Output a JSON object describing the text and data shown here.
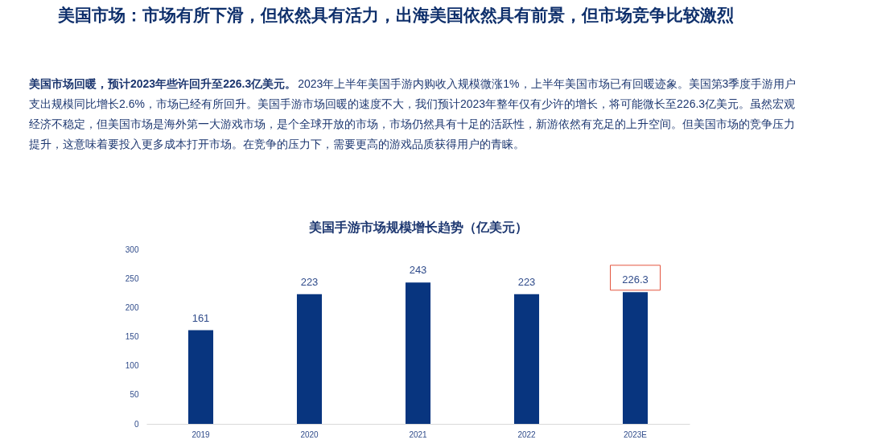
{
  "chart_data": {
    "type": "bar",
    "title": "美国手游市场规模增长趋势（亿美元）",
    "annotations": [
      "美国市场：市场有所下滑，但依然具有活力，出海美国依然具有前景，但市场竞争比较激烈",
      "美国市场回暖，预计2023年些许回升至226.3亿美元。",
      "2023年上半年美国手游内购收入规模微涨1%，上半年美国市场已有回暖迹象。美国第3季度手游用户支出规模同比增长2.6%，市场已经有所回升。美国手游市场回暖的速度不大，我们预计2023年整年仅有少许的增长，将可能微长至226.3亿美元。虽然宏观经济不稳定，但美国市场是海外第一大游戏市场，是个全球开放的市场，市场仍然具有十足的活跃性，新游依然有充足的上升空间。但美国市场的竞争压力提升，这意味着要投入更多成本打开市场。在竞争的压力下，需要更高的游戏品质获得用户的青睐。"
    ],
    "categories": [
      "2019",
      "2020",
      "2021",
      "2022",
      "2023E"
    ],
    "values": [
      161,
      223,
      243,
      223,
      226.3
    ],
    "color": "#08357f",
    "ylim": [
      0,
      300
    ],
    "yticks": [
      0,
      50,
      100,
      150,
      200,
      250,
      300
    ],
    "data_labels": true,
    "grid": false
  }
}
